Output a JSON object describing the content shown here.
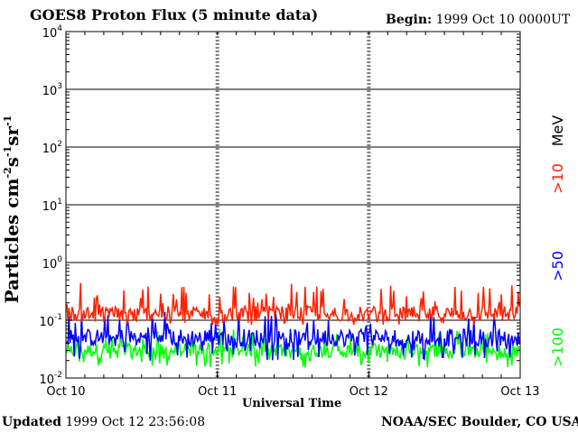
{
  "header": {
    "title": "GOES8 Proton Flux (5 minute data)",
    "begin_label": "Begin:",
    "begin_value": "1999 Oct 10 0000UT"
  },
  "footer": {
    "updated_label": "Updated",
    "updated_value": "1999 Oct 12 23:56:08",
    "credit": "NOAA/SEC Boulder, CO USA"
  },
  "chart_data": {
    "type": "line",
    "title": "GOES8 Proton Flux (5 minute data)",
    "xlabel": "Universal Time",
    "ylabel": "Particles cm-2s-1sr-1",
    "yscale": "log",
    "ylim": [
      0.01,
      10000
    ],
    "y_ticks": [
      {
        "base": "10",
        "exp": "-2"
      },
      {
        "base": "10",
        "exp": "-1"
      },
      {
        "base": "10",
        "exp": "0"
      },
      {
        "base": "10",
        "exp": "1"
      },
      {
        "base": "10",
        "exp": "2"
      },
      {
        "base": "10",
        "exp": "3"
      },
      {
        "base": "10",
        "exp": "4"
      }
    ],
    "x_ticks": [
      "Oct 10",
      "Oct 11",
      "Oct 12",
      "Oct 13"
    ],
    "xlim": [
      "1999-10-10 00:00",
      "1999-10-13 00:00"
    ],
    "grid": true,
    "legend_position": "right",
    "legend_unit": "MeV",
    "series": [
      {
        "name": ">10",
        "color": "#ff2000",
        "level": 0.13,
        "noise_range": [
          0.08,
          0.45
        ]
      },
      {
        "name": ">50",
        "color": "#0000ff",
        "level": 0.05,
        "noise_range": [
          0.02,
          0.15
        ]
      },
      {
        "name": ">100",
        "color": "#00ff00",
        "level": 0.03,
        "noise_range": [
          0.015,
          0.07
        ]
      }
    ]
  }
}
